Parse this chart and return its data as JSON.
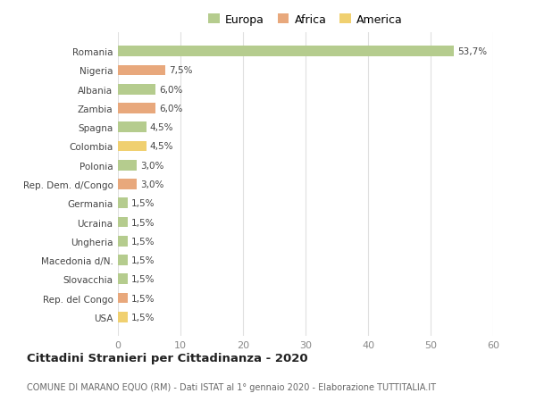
{
  "countries": [
    "Romania",
    "Nigeria",
    "Albania",
    "Zambia",
    "Spagna",
    "Colombia",
    "Polonia",
    "Rep. Dem. d/Congo",
    "Germania",
    "Ucraina",
    "Ungheria",
    "Macedonia d/N.",
    "Slovacchia",
    "Rep. del Congo",
    "USA"
  ],
  "values": [
    53.7,
    7.5,
    6.0,
    6.0,
    4.5,
    4.5,
    3.0,
    3.0,
    1.5,
    1.5,
    1.5,
    1.5,
    1.5,
    1.5,
    1.5
  ],
  "labels": [
    "53,7%",
    "7,5%",
    "6,0%",
    "6,0%",
    "4,5%",
    "4,5%",
    "3,0%",
    "3,0%",
    "1,5%",
    "1,5%",
    "1,5%",
    "1,5%",
    "1,5%",
    "1,5%",
    "1,5%"
  ],
  "continent": [
    "Europa",
    "Africa",
    "Europa",
    "Africa",
    "Europa",
    "America",
    "Europa",
    "Africa",
    "Europa",
    "Europa",
    "Europa",
    "Europa",
    "Europa",
    "Africa",
    "America"
  ],
  "colors": {
    "Europa": "#b5cc8e",
    "Africa": "#e8a87c",
    "America": "#f0d070"
  },
  "xlim": [
    0,
    60
  ],
  "xticks": [
    0,
    10,
    20,
    30,
    40,
    50,
    60
  ],
  "title": "Cittadini Stranieri per Cittadinanza - 2020",
  "subtitle": "COMUNE DI MARANO EQUO (RM) - Dati ISTAT al 1° gennaio 2020 - Elaborazione TUTTITALIA.IT",
  "background_color": "#ffffff",
  "grid_color": "#e0e0e0",
  "bar_height": 0.55,
  "legend_labels": [
    "Europa",
    "Africa",
    "America"
  ]
}
